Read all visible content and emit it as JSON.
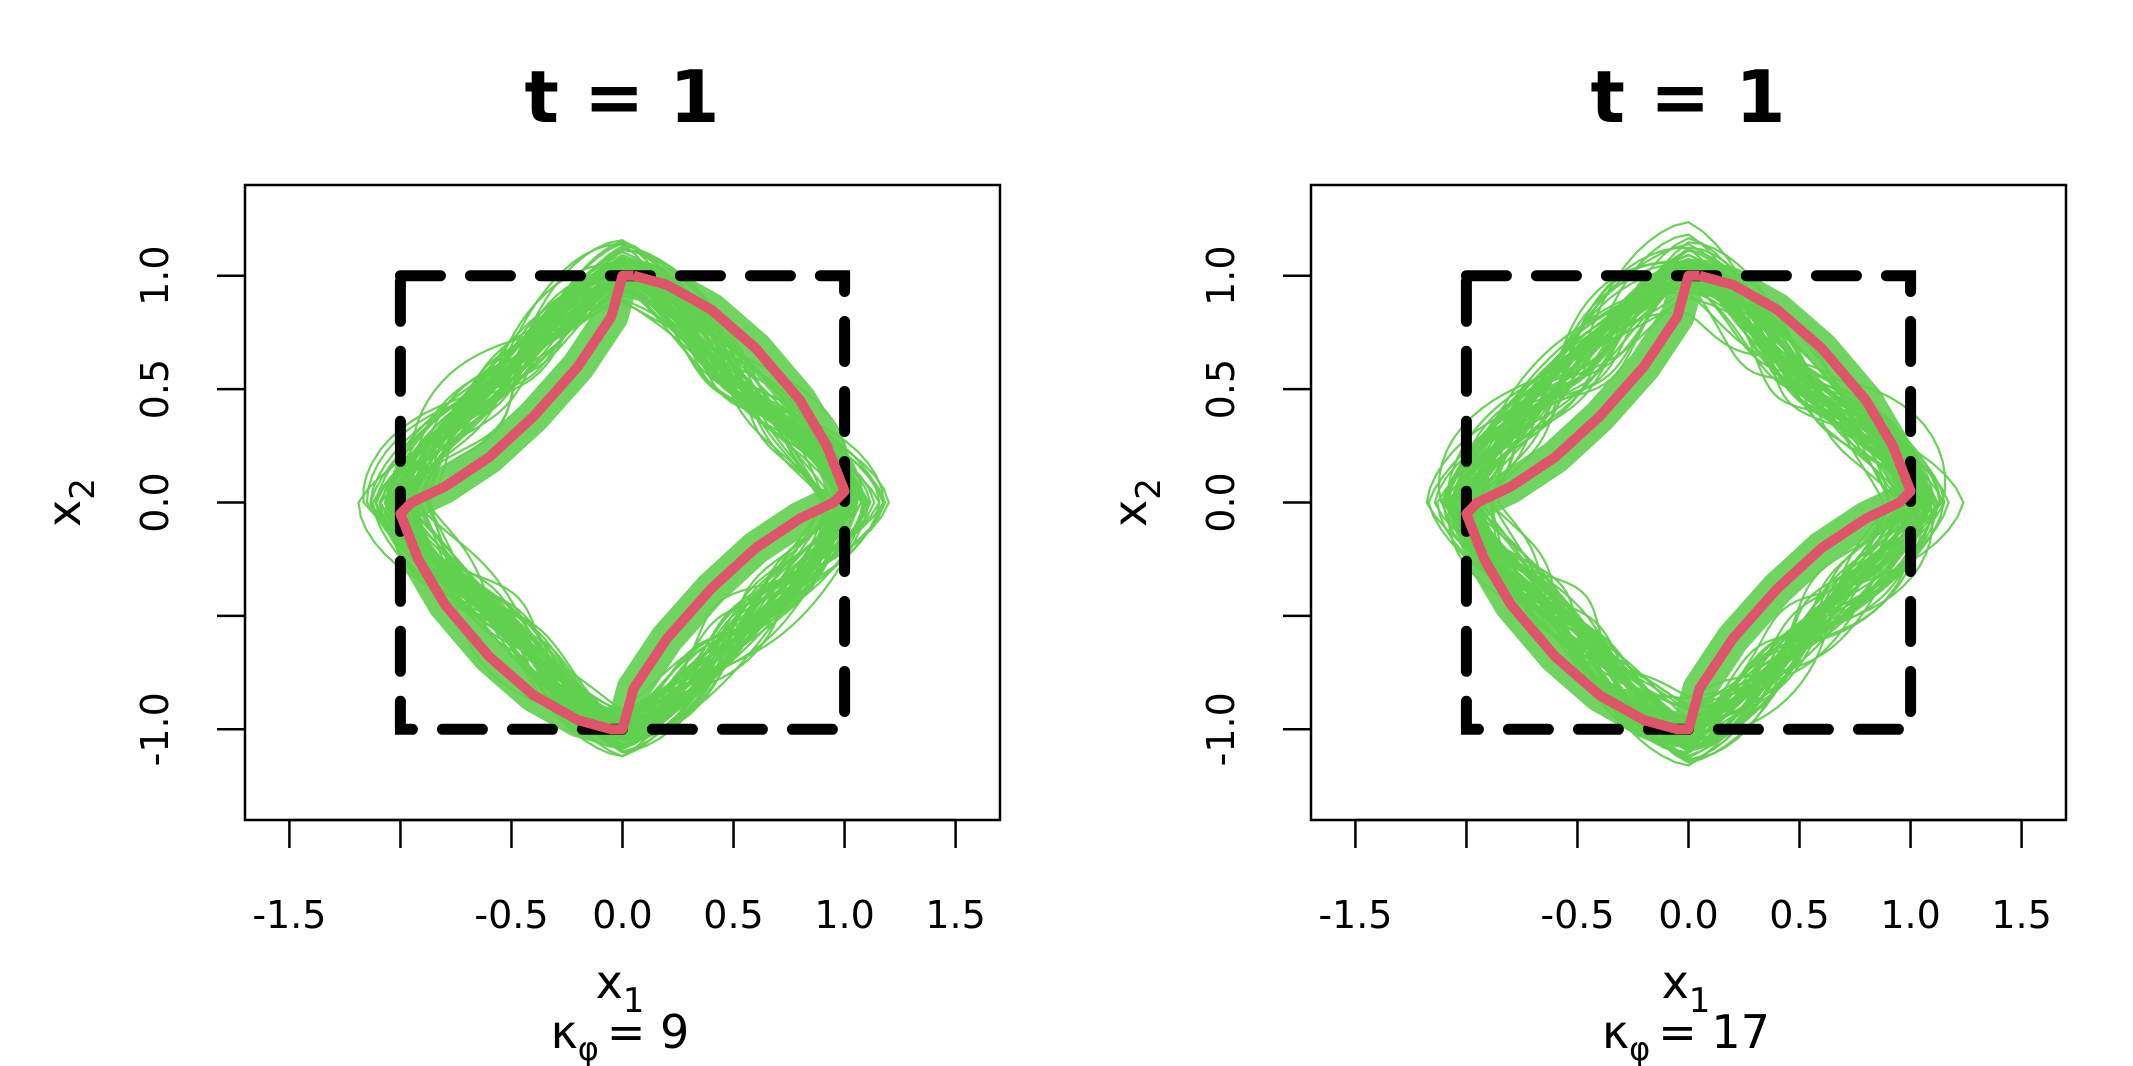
{
  "chart_data": [
    {
      "type": "line",
      "title": "t = 1",
      "xlabel": "x",
      "xlabel_sub": "1",
      "ylabel": "x",
      "ylabel_sub": "2",
      "caption_symbol": "κ",
      "caption_sub": "φ",
      "caption_value": "= 9",
      "xlim": [
        -1.7,
        1.7
      ],
      "ylim": [
        -1.4,
        1.4
      ],
      "x_ticks": [
        -1.5,
        -1.0,
        -0.5,
        0.0,
        0.5,
        1.0,
        1.5
      ],
      "x_tick_labels": [
        "-1.5",
        "",
        "-0.5",
        "0.0",
        "0.5",
        "1.0",
        "1.5"
      ],
      "y_ticks": [
        -1.0,
        -0.5,
        0.0,
        0.5,
        1.0
      ],
      "y_tick_labels": [
        "-1.0",
        "",
        "0.0",
        "0.5",
        "1.0"
      ],
      "grid": false,
      "series": [
        {
          "role": "reference square",
          "style": "dashed",
          "color": "#000000",
          "x": [
            -1,
            1,
            1,
            -1,
            -1
          ],
          "y": [
            1,
            1,
            -1,
            -1,
            1
          ]
        },
        {
          "role": "true curve",
          "color": "#DF536B",
          "x": [
            0.05,
            0.2,
            0.4,
            0.6,
            0.8,
            0.92,
            1.0,
            0.95,
            0.8,
            0.6,
            0.4,
            0.2,
            0.05,
            0.0,
            -0.05,
            -0.2,
            -0.4,
            -0.6,
            -0.8,
            -0.92,
            -1.0,
            -0.95,
            -0.8,
            -0.6,
            -0.4,
            -0.2,
            -0.05,
            0.0,
            0.05
          ],
          "y": [
            1.0,
            0.96,
            0.85,
            0.68,
            0.45,
            0.25,
            0.05,
            0.0,
            -0.07,
            -0.2,
            -0.38,
            -0.6,
            -0.82,
            -1.0,
            -1.0,
            -0.96,
            -0.85,
            -0.68,
            -0.45,
            -0.25,
            -0.05,
            0.0,
            0.07,
            0.2,
            0.38,
            0.6,
            0.82,
            1.0,
            1.0
          ]
        },
        {
          "role": "posterior sample curves",
          "color": "#61D04F",
          "count": 60
        }
      ]
    },
    {
      "type": "line",
      "title": "t = 1",
      "xlabel": "x",
      "xlabel_sub": "1",
      "ylabel": "x",
      "ylabel_sub": "2",
      "caption_symbol": "κ",
      "caption_sub": "φ",
      "caption_value": "= 17",
      "xlim": [
        -1.7,
        1.7
      ],
      "ylim": [
        -1.4,
        1.4
      ],
      "x_ticks": [
        -1.5,
        -1.0,
        -0.5,
        0.0,
        0.5,
        1.0,
        1.5
      ],
      "x_tick_labels": [
        "-1.5",
        "",
        "-0.5",
        "0.0",
        "0.5",
        "1.0",
        "1.5"
      ],
      "y_ticks": [
        -1.0,
        -0.5,
        0.0,
        0.5,
        1.0
      ],
      "y_tick_labels": [
        "-1.0",
        "",
        "0.0",
        "0.5",
        "1.0"
      ],
      "grid": false,
      "series": [
        {
          "role": "reference square",
          "style": "dashed",
          "color": "#000000",
          "x": [
            -1,
            1,
            1,
            -1,
            -1
          ],
          "y": [
            1,
            1,
            -1,
            -1,
            1
          ]
        },
        {
          "role": "true curve",
          "color": "#DF536B",
          "x": [
            0.05,
            0.2,
            0.4,
            0.6,
            0.8,
            0.92,
            1.0,
            0.95,
            0.8,
            0.6,
            0.4,
            0.2,
            0.05,
            0.0,
            -0.05,
            -0.2,
            -0.4,
            -0.6,
            -0.8,
            -0.92,
            -1.0,
            -0.95,
            -0.8,
            -0.6,
            -0.4,
            -0.2,
            -0.05,
            0.0,
            0.05
          ],
          "y": [
            1.0,
            0.96,
            0.85,
            0.68,
            0.45,
            0.25,
            0.05,
            0.0,
            -0.07,
            -0.2,
            -0.38,
            -0.6,
            -0.82,
            -1.0,
            -1.0,
            -0.96,
            -0.85,
            -0.68,
            -0.45,
            -0.25,
            -0.05,
            0.0,
            0.07,
            0.2,
            0.38,
            0.6,
            0.82,
            1.0,
            1.0
          ]
        },
        {
          "role": "posterior sample curves",
          "color": "#61D04F",
          "count": 60
        }
      ]
    }
  ]
}
